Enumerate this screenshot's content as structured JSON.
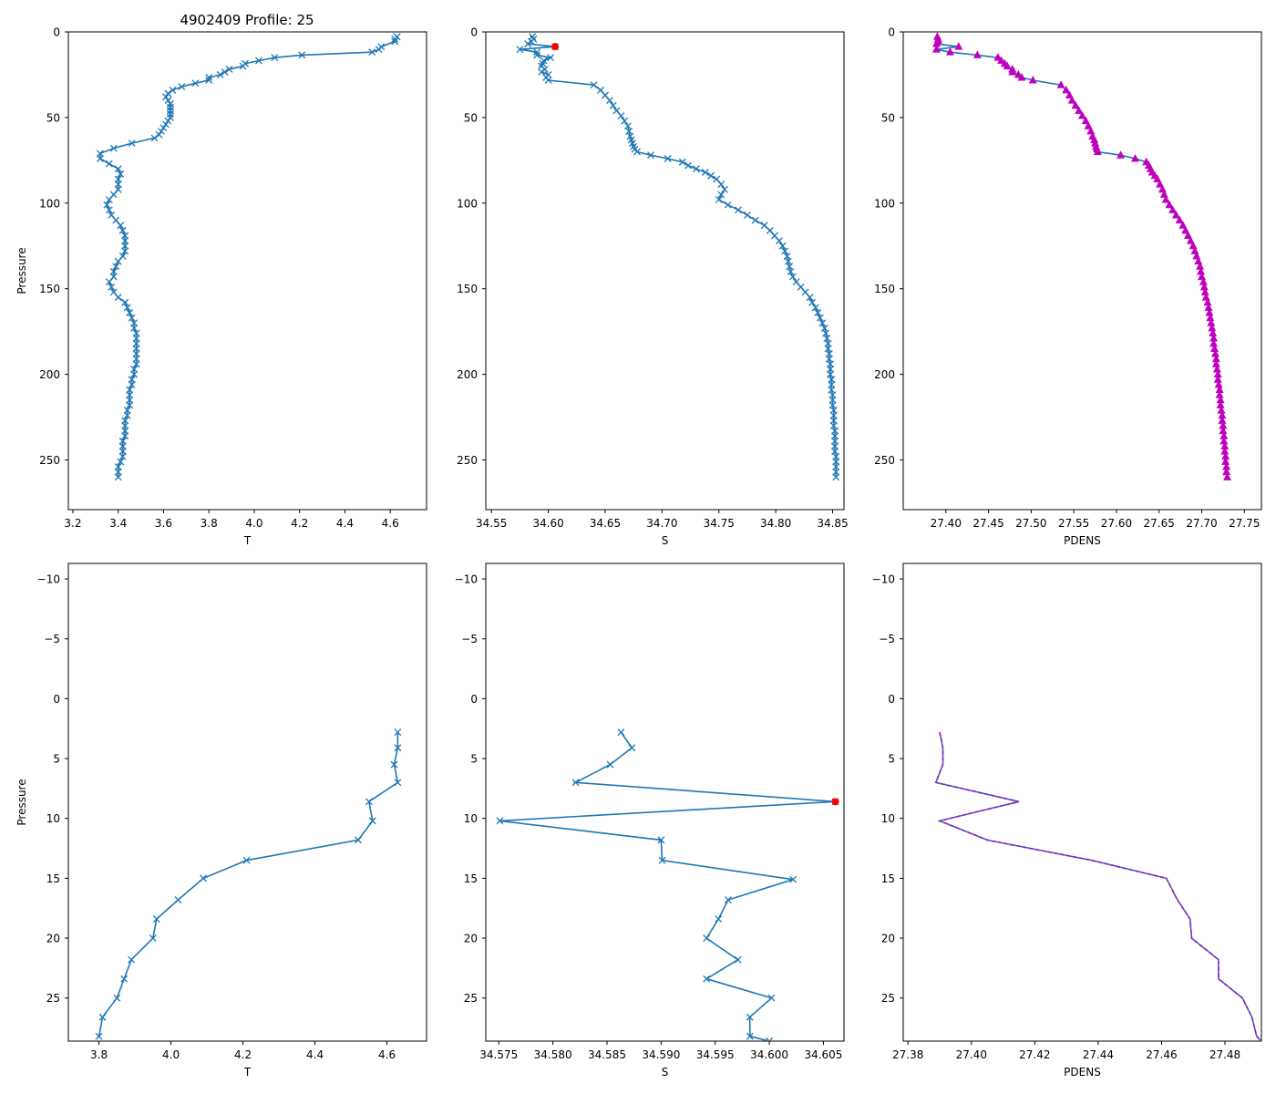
{
  "figure_title": "4902409 Profile: 25",
  "colors": {
    "line": "#1f77b4",
    "density_marker": "#bf00bf",
    "flag": "#ff0000"
  },
  "chart_data": [
    {
      "id": "top-T",
      "type": "line",
      "xlabel": "T",
      "ylabel": "Pressure",
      "xlim": [
        3.18,
        4.76
      ],
      "ylim": [
        279,
        0
      ],
      "y_inverted": true,
      "xticks": [
        3.2,
        3.4,
        3.6,
        3.8,
        4.0,
        4.2,
        4.4,
        4.6
      ],
      "xtick_labels": [
        "3.2",
        "3.4",
        "3.6",
        "3.8",
        "4.0",
        "4.2",
        "4.4",
        "4.6"
      ],
      "yticks": [
        0,
        50,
        100,
        150,
        200,
        250
      ],
      "ytick_labels": [
        "0",
        "50",
        "100",
        "150",
        "200",
        "250"
      ],
      "marker": "x",
      "x": [
        4.63,
        4.62,
        4.62,
        4.56,
        4.55,
        4.52,
        4.21,
        4.09,
        4.02,
        3.96,
        3.95,
        3.89,
        3.87,
        3.85,
        3.8,
        3.8,
        3.74,
        3.68,
        3.64,
        3.62,
        3.61,
        3.62,
        3.63,
        3.63,
        3.63,
        3.63,
        3.63,
        3.62,
        3.61,
        3.6,
        3.59,
        3.58,
        3.56,
        3.46,
        3.38,
        3.32,
        3.32,
        3.36,
        3.4,
        3.41,
        3.4,
        3.4,
        3.4,
        3.38,
        3.36,
        3.35,
        3.36,
        3.37,
        3.39,
        3.41,
        3.42,
        3.43,
        3.43,
        3.43,
        3.43,
        3.42,
        3.4,
        3.39,
        3.38,
        3.38,
        3.36,
        3.37,
        3.38,
        3.4,
        3.43,
        3.44,
        3.45,
        3.46,
        3.47,
        3.47,
        3.48,
        3.48,
        3.48,
        3.48,
        3.48,
        3.48,
        3.48,
        3.47,
        3.47,
        3.46,
        3.46,
        3.45,
        3.45,
        3.45,
        3.45,
        3.44,
        3.44,
        3.43,
        3.43,
        3.43,
        3.43,
        3.42,
        3.42,
        3.42,
        3.42,
        3.41,
        3.4,
        3.4,
        3.4
      ],
      "y": [
        2.8,
        4.2,
        5.6,
        8.6,
        10.2,
        11.8,
        13.5,
        15.0,
        16.8,
        18.5,
        20.0,
        21.8,
        23.4,
        25.0,
        26.6,
        28.2,
        30.0,
        32.0,
        34.0,
        36.0,
        38.0,
        40.0,
        42.0,
        44.0,
        46.0,
        48.0,
        50.0,
        52.0,
        54.0,
        56.0,
        58.0,
        60.0,
        62.0,
        65.0,
        68.0,
        71.0,
        74.0,
        77.0,
        80.0,
        83.0,
        86.0,
        89.0,
        92.0,
        95.0,
        98.0,
        101.0,
        104.0,
        107.0,
        110.0,
        113.0,
        116.0,
        119.0,
        122.0,
        125.0,
        128.0,
        131.0,
        134.0,
        137.0,
        140.0,
        143.0,
        146.0,
        149.0,
        152.0,
        155.0,
        158.0,
        161.0,
        164.0,
        167.0,
        170.0,
        173.0,
        176.0,
        179.0,
        182.0,
        185.0,
        188.0,
        191.0,
        194.0,
        197.0,
        200.0,
        203.0,
        206.0,
        209.0,
        212.0,
        215.0,
        218.0,
        221.0,
        224.0,
        227.0,
        230.0,
        233.0,
        236.0,
        239.0,
        242.0,
        245.0,
        248.0,
        251.0,
        254.0,
        257.0,
        260.0
      ]
    },
    {
      "id": "top-S",
      "type": "line",
      "xlabel": "S",
      "ylabel": "",
      "xlim": [
        34.545,
        34.86
      ],
      "ylim": [
        279,
        0
      ],
      "y_inverted": true,
      "xticks": [
        34.55,
        34.6,
        34.65,
        34.7,
        34.75,
        34.8,
        34.85
      ],
      "xtick_labels": [
        "34.55",
        "34.60",
        "34.65",
        "34.70",
        "34.75",
        "34.80",
        "34.85"
      ],
      "yticks": [
        0,
        50,
        100,
        150,
        200,
        250
      ],
      "ytick_labels": [
        "0",
        "50",
        "100",
        "150",
        "200",
        "250"
      ],
      "marker": "x",
      "x": [
        34.586,
        34.587,
        34.585,
        34.582,
        34.606,
        34.575,
        34.59,
        34.59,
        34.602,
        34.596,
        34.595,
        34.594,
        34.597,
        34.594,
        34.6,
        34.598,
        34.6,
        34.64,
        34.646,
        34.65,
        34.654,
        34.657,
        34.66,
        34.664,
        34.667,
        34.67,
        34.671,
        34.672,
        34.673,
        34.674,
        34.675,
        34.676,
        34.678,
        34.69,
        34.705,
        34.718,
        34.723,
        34.73,
        34.738,
        34.743,
        34.748,
        34.752,
        34.755,
        34.752,
        34.75,
        34.758,
        34.767,
        34.775,
        34.782,
        34.79,
        34.795,
        34.799,
        34.803,
        34.806,
        34.808,
        34.81,
        34.811,
        34.812,
        34.813,
        34.815,
        34.818,
        34.822,
        34.826,
        34.83,
        34.832,
        34.835,
        34.837,
        34.839,
        34.841,
        34.843,
        34.844,
        34.845,
        34.846,
        34.846,
        34.847,
        34.847,
        34.848,
        34.848,
        34.848,
        34.849,
        34.849,
        34.849,
        34.85,
        34.85,
        34.85,
        34.851,
        34.851,
        34.851,
        34.851,
        34.852,
        34.852,
        34.852,
        34.852,
        34.852,
        34.853,
        34.853,
        34.853,
        34.853,
        34.853
      ],
      "y": [
        2.8,
        4.2,
        5.6,
        7.0,
        8.6,
        10.2,
        11.8,
        13.5,
        15.0,
        16.8,
        18.5,
        20.0,
        21.8,
        23.4,
        25.0,
        26.6,
        28.2,
        31.0,
        34.0,
        37.0,
        40.0,
        43.0,
        46.0,
        49.0,
        52.0,
        55.0,
        58.0,
        61.0,
        63.0,
        65.0,
        67.0,
        68.5,
        70.0,
        72.0,
        74.0,
        76.0,
        78.0,
        80.0,
        82.0,
        84.0,
        86.0,
        89.0,
        92.0,
        95.0,
        98.0,
        101.0,
        104.0,
        107.0,
        110.0,
        113.0,
        116.0,
        119.0,
        122.0,
        125.0,
        128.0,
        131.0,
        134.0,
        137.0,
        140.0,
        143.0,
        146.0,
        149.0,
        152.0,
        155.0,
        158.0,
        161.0,
        164.0,
        167.0,
        170.0,
        173.0,
        176.0,
        179.0,
        182.0,
        185.0,
        188.0,
        191.0,
        194.0,
        197.0,
        200.0,
        203.0,
        206.0,
        209.0,
        212.0,
        215.0,
        218.0,
        221.0,
        224.0,
        227.0,
        230.0,
        233.0,
        236.0,
        239.0,
        242.0,
        245.0,
        248.0,
        251.0,
        254.0,
        257.0,
        260.0
      ],
      "flagged_points": [
        {
          "x": 34.606,
          "y": 8.6
        }
      ]
    },
    {
      "id": "top-PDENS",
      "type": "line",
      "xlabel": "PDENS",
      "ylabel": "",
      "xlim": [
        27.35,
        27.77
      ],
      "ylim": [
        279,
        0
      ],
      "y_inverted": true,
      "xticks": [
        27.4,
        27.45,
        27.5,
        27.55,
        27.6,
        27.65,
        27.7,
        27.75
      ],
      "xtick_labels": [
        "27.40",
        "27.45",
        "27.50",
        "27.55",
        "27.60",
        "27.65",
        "27.70",
        "27.75"
      ],
      "yticks": [
        0,
        50,
        100,
        150,
        200,
        250
      ],
      "ytick_labels": [
        "0",
        "50",
        "100",
        "150",
        "200",
        "250"
      ],
      "marker": "triangle",
      "x": [
        27.39,
        27.391,
        27.391,
        27.389,
        27.415,
        27.389,
        27.405,
        27.437,
        27.461,
        27.465,
        27.469,
        27.472,
        27.478,
        27.478,
        27.485,
        27.489,
        27.502,
        27.535,
        27.541,
        27.545,
        27.548,
        27.552,
        27.556,
        27.56,
        27.564,
        27.567,
        27.57,
        27.572,
        27.574,
        27.575,
        27.576,
        27.577,
        27.578,
        27.605,
        27.622,
        27.635,
        27.638,
        27.64,
        27.642,
        27.645,
        27.648,
        27.651,
        27.654,
        27.656,
        27.658,
        27.662,
        27.666,
        27.67,
        27.674,
        27.678,
        27.681,
        27.684,
        27.687,
        27.69,
        27.692,
        27.694,
        27.696,
        27.698,
        27.699,
        27.7,
        27.702,
        27.703,
        27.704,
        27.705,
        27.707,
        27.708,
        27.709,
        27.71,
        27.711,
        27.712,
        27.713,
        27.714,
        27.714,
        27.715,
        27.716,
        27.717,
        27.717,
        27.718,
        27.719,
        27.719,
        27.72,
        27.721,
        27.721,
        27.722,
        27.722,
        27.723,
        27.724,
        27.724,
        27.725,
        27.725,
        27.726,
        27.726,
        27.727,
        27.727,
        27.728,
        27.728,
        27.729,
        27.729,
        27.73
      ],
      "y": [
        2.8,
        4.2,
        5.6,
        7.0,
        8.6,
        10.2,
        11.8,
        13.5,
        15.0,
        16.8,
        18.5,
        20.0,
        21.8,
        23.4,
        25.0,
        26.6,
        28.2,
        31.0,
        34.0,
        37.0,
        40.0,
        43.0,
        46.0,
        49.0,
        52.0,
        55.0,
        58.0,
        61.0,
        63.0,
        65.0,
        67.0,
        68.5,
        70.0,
        72.0,
        74.0,
        76.0,
        78.0,
        80.0,
        82.0,
        84.0,
        86.0,
        89.0,
        92.0,
        95.0,
        98.0,
        101.0,
        104.0,
        107.0,
        110.0,
        113.0,
        116.0,
        119.0,
        122.0,
        125.0,
        128.0,
        131.0,
        134.0,
        137.0,
        140.0,
        143.0,
        146.0,
        149.0,
        152.0,
        155.0,
        158.0,
        161.0,
        164.0,
        167.0,
        170.0,
        173.0,
        176.0,
        179.0,
        182.0,
        185.0,
        188.0,
        191.0,
        194.0,
        197.0,
        200.0,
        203.0,
        206.0,
        209.0,
        212.0,
        215.0,
        218.0,
        221.0,
        224.0,
        227.0,
        230.0,
        233.0,
        236.0,
        239.0,
        242.0,
        245.0,
        248.0,
        251.0,
        254.0,
        257.0,
        260.0
      ]
    },
    {
      "id": "bottom-T",
      "type": "line",
      "xlabel": "T",
      "ylabel": "Pressure",
      "xlim": [
        3.715,
        4.71
      ],
      "ylim": [
        28.6,
        -11.3
      ],
      "y_inverted": true,
      "xticks": [
        3.8,
        4.0,
        4.2,
        4.4,
        4.6
      ],
      "xtick_labels": [
        "3.8",
        "4.0",
        "4.2",
        "4.4",
        "4.6"
      ],
      "yticks": [
        -10,
        -5,
        0,
        5,
        10,
        15,
        20,
        25
      ],
      "ytick_labels": [
        "−10",
        "−5",
        "0",
        "5",
        "10",
        "15",
        "20",
        "25"
      ],
      "marker": "x",
      "x": [
        4.63,
        4.63,
        4.62,
        4.63,
        4.55,
        4.56,
        4.52,
        4.21,
        4.09,
        4.02,
        3.96,
        3.95,
        3.89,
        3.87,
        3.85,
        3.81,
        3.8
      ],
      "y": [
        2.8,
        4.1,
        5.5,
        7.0,
        8.6,
        10.2,
        11.8,
        13.5,
        15.0,
        16.8,
        18.4,
        20.0,
        21.8,
        23.4,
        25.0,
        26.6,
        28.2
      ]
    },
    {
      "id": "bottom-S",
      "type": "line",
      "xlabel": "S",
      "ylabel": "",
      "xlim": [
        34.5738,
        34.6069
      ],
      "ylim": [
        28.6,
        -11.3
      ],
      "y_inverted": true,
      "xticks": [
        34.575,
        34.58,
        34.585,
        34.59,
        34.595,
        34.6,
        34.605
      ],
      "xtick_labels": [
        "34.575",
        "34.580",
        "34.585",
        "34.590",
        "34.595",
        "34.600",
        "34.605"
      ],
      "yticks": [
        -10,
        -5,
        0,
        5,
        10,
        15,
        20,
        25
      ],
      "ytick_labels": [
        "−10",
        "−5",
        "0",
        "5",
        "10",
        "15",
        "20",
        "25"
      ],
      "marker": "x",
      "x": [
        34.5863,
        34.5873,
        34.5853,
        34.5821,
        34.6061,
        34.5751,
        34.59,
        34.5901,
        34.6022,
        34.5962,
        34.5953,
        34.5942,
        34.5971,
        34.5942,
        34.6002,
        34.5982,
        34.5982,
        34.6
      ],
      "y": [
        2.8,
        4.1,
        5.5,
        7.0,
        8.6,
        10.2,
        11.8,
        13.5,
        15.1,
        16.8,
        18.4,
        20.0,
        21.8,
        23.4,
        25.0,
        26.6,
        28.2,
        28.6
      ],
      "flagged_points": [
        {
          "x": 34.6061,
          "y": 8.6
        }
      ]
    },
    {
      "id": "bottom-PDENS",
      "type": "line",
      "xlabel": "PDENS",
      "ylabel": "",
      "xlim": [
        27.3785,
        27.4915
      ],
      "ylim": [
        28.6,
        -11.3
      ],
      "y_inverted": true,
      "xticks": [
        27.38,
        27.4,
        27.42,
        27.44,
        27.46,
        27.48
      ],
      "xtick_labels": [
        "27.38",
        "27.40",
        "27.42",
        "27.44",
        "27.46",
        "27.48"
      ],
      "yticks": [
        -10,
        -5,
        0,
        5,
        10,
        15,
        20,
        25
      ],
      "ytick_labels": [
        "−10",
        "−5",
        "0",
        "5",
        "10",
        "15",
        "20",
        "25"
      ],
      "marker": "none",
      "x": [
        27.39,
        27.391,
        27.391,
        27.3888,
        27.415,
        27.39,
        27.405,
        27.438,
        27.4615,
        27.465,
        27.469,
        27.4695,
        27.478,
        27.478,
        27.4855,
        27.4885,
        27.49,
        27.4915
      ],
      "y": [
        2.8,
        4.1,
        5.5,
        7.0,
        8.6,
        10.2,
        11.8,
        13.5,
        15.0,
        16.8,
        18.4,
        20.0,
        21.8,
        23.4,
        25.0,
        26.6,
        28.2,
        28.6
      ]
    }
  ]
}
